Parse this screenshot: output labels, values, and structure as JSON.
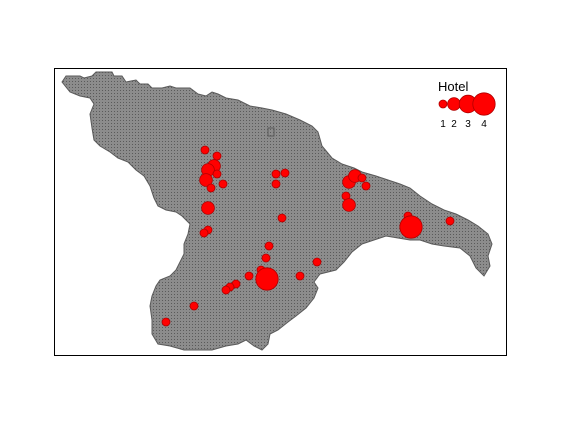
{
  "legend": {
    "title": "Hotel",
    "sizes": [
      {
        "label": "1",
        "value": 1
      },
      {
        "label": "2",
        "value": 2
      },
      {
        "label": "3",
        "value": 3
      },
      {
        "label": "4",
        "value": 4
      }
    ]
  },
  "colors": {
    "region_fill": "#8c8c8c",
    "region_texture": "#5a5a5a",
    "point_fill": "#ff0000",
    "point_stroke": "#b00000",
    "frame": "#000000"
  },
  "points": [
    {
      "id": 1,
      "hotels": 1
    },
    {
      "id": 2,
      "hotels": 1
    },
    {
      "id": 3,
      "hotels": 2
    },
    {
      "id": 4,
      "hotels": 2
    },
    {
      "id": 5,
      "hotels": 1
    },
    {
      "id": 6,
      "hotels": 2
    },
    {
      "id": 7,
      "hotels": 1
    },
    {
      "id": 8,
      "hotels": 1
    },
    {
      "id": 9,
      "hotels": 2
    },
    {
      "id": 10,
      "hotels": 1
    },
    {
      "id": 11,
      "hotels": 1
    },
    {
      "id": 12,
      "hotels": 1
    },
    {
      "id": 13,
      "hotels": 1
    },
    {
      "id": 14,
      "hotels": 1
    },
    {
      "id": 15,
      "hotels": 1
    },
    {
      "id": 16,
      "hotels": 1
    },
    {
      "id": 17,
      "hotels": 1
    },
    {
      "id": 18,
      "hotels": 1
    },
    {
      "id": 19,
      "hotels": 2
    },
    {
      "id": 20,
      "hotels": 4
    },
    {
      "id": 21,
      "hotels": 1
    },
    {
      "id": 22,
      "hotels": 1
    },
    {
      "id": 23,
      "hotels": 1
    },
    {
      "id": 24,
      "hotels": 1
    },
    {
      "id": 25,
      "hotels": 1
    },
    {
      "id": 26,
      "hotels": 1
    },
    {
      "id": 27,
      "hotels": 1
    },
    {
      "id": 28,
      "hotels": 1
    },
    {
      "id": 29,
      "hotels": 2
    },
    {
      "id": 30,
      "hotels": 2
    },
    {
      "id": 31,
      "hotels": 1
    },
    {
      "id": 32,
      "hotels": 1
    },
    {
      "id": 33,
      "hotels": 1
    },
    {
      "id": 34,
      "hotels": 2
    },
    {
      "id": 35,
      "hotels": 1
    },
    {
      "id": 36,
      "hotels": 4
    },
    {
      "id": 37,
      "hotels": 1
    }
  ]
}
